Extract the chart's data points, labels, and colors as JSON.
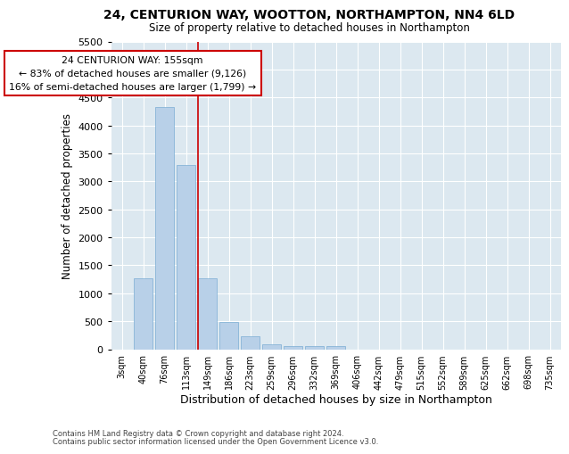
{
  "title": "24, CENTURION WAY, WOOTTON, NORTHAMPTON, NN4 6LD",
  "subtitle": "Size of property relative to detached houses in Northampton",
  "xlabel": "Distribution of detached houses by size in Northampton",
  "ylabel": "Number of detached properties",
  "categories": [
    "3sqm",
    "40sqm",
    "76sqm",
    "113sqm",
    "149sqm",
    "186sqm",
    "223sqm",
    "259sqm",
    "296sqm",
    "332sqm",
    "369sqm",
    "406sqm",
    "442sqm",
    "479sqm",
    "515sqm",
    "552sqm",
    "589sqm",
    "625sqm",
    "662sqm",
    "698sqm",
    "735sqm"
  ],
  "values": [
    0,
    1270,
    4330,
    3290,
    1270,
    480,
    230,
    90,
    60,
    50,
    50,
    0,
    0,
    0,
    0,
    0,
    0,
    0,
    0,
    0,
    0
  ],
  "bar_color": "#b8d0e8",
  "bar_edge_color": "#7aadd4",
  "vline_index": 4,
  "vline_color": "#cc0000",
  "ylim": [
    0,
    5500
  ],
  "yticks": [
    0,
    500,
    1000,
    1500,
    2000,
    2500,
    3000,
    3500,
    4000,
    4500,
    5000,
    5500
  ],
  "annotation_title": "24 CENTURION WAY: 155sqm",
  "annotation_line1": "← 83% of detached houses are smaller (9,126)",
  "annotation_line2": "16% of semi-detached houses are larger (1,799) →",
  "annotation_box_color": "#cc0000",
  "plot_bg_color": "#dce8f0",
  "fig_bg_color": "#ffffff",
  "grid_color": "#ffffff",
  "footer_line1": "Contains HM Land Registry data © Crown copyright and database right 2024.",
  "footer_line2": "Contains public sector information licensed under the Open Government Licence v3.0."
}
